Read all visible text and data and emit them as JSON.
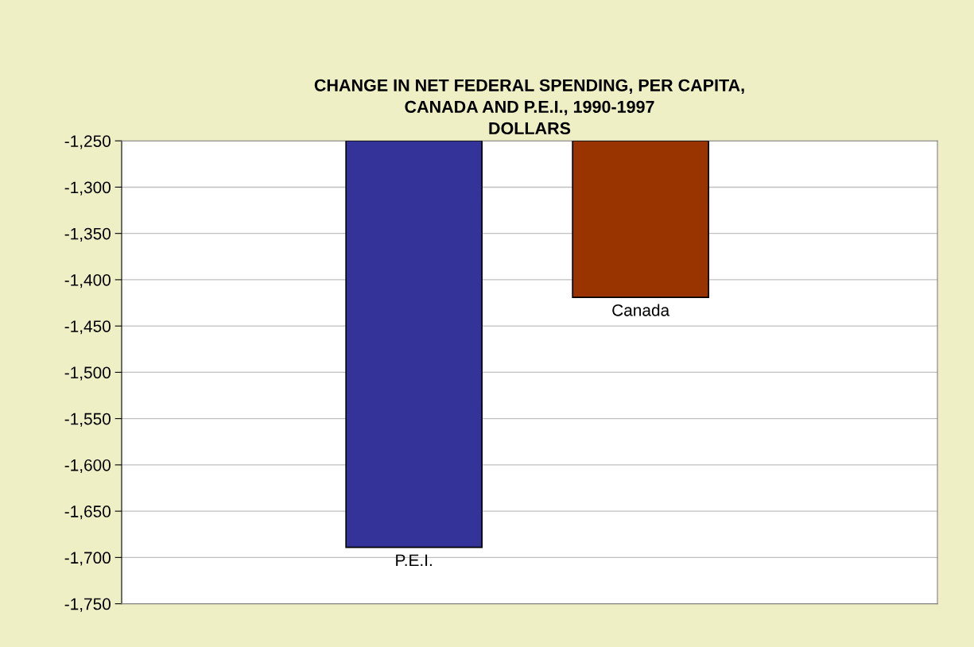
{
  "chart_data": {
    "type": "bar",
    "title": "CHANGE IN NET FEDERAL SPENDING, PER CAPITA,\nCANADA AND P.E.I., 1990-1997\nDOLLARS",
    "categories": [
      "P.E.I.",
      "Canada"
    ],
    "values": [
      -1689,
      -1419
    ],
    "colors": [
      "#333399",
      "#993300"
    ],
    "ylim": [
      -1750,
      -1250
    ],
    "yticks": [
      {
        "value": -1750,
        "label": "-1,750"
      },
      {
        "value": -1700,
        "label": "-1,700"
      },
      {
        "value": -1650,
        "label": "-1,650"
      },
      {
        "value": -1600,
        "label": "-1,600"
      },
      {
        "value": -1550,
        "label": "-1,550"
      },
      {
        "value": -1500,
        "label": "-1,500"
      },
      {
        "value": -1450,
        "label": "-1,450"
      },
      {
        "value": -1400,
        "label": "-1,400"
      },
      {
        "value": -1350,
        "label": "-1,350"
      },
      {
        "value": -1300,
        "label": "-1,300"
      },
      {
        "value": -1250,
        "label": "-1,250"
      }
    ],
    "grid": "y",
    "tick_labels": "y"
  }
}
